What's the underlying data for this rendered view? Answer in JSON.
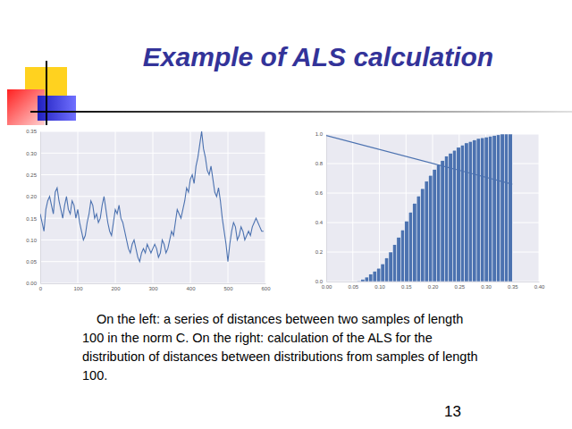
{
  "title": "Example of ALS calculation",
  "caption": [
    "On the left: a series of distances between two samples of length",
    "100 in the norm C. On the right: calculation of the ALS for the",
    "distribution of distances between distributions from samples of length",
    "100."
  ],
  "page": 13,
  "chart_data": [
    {
      "type": "line",
      "color": "#4c72b0",
      "grid": true,
      "xlim": [
        0,
        600
      ],
      "xticks": [
        0,
        100,
        200,
        300,
        400,
        500,
        600
      ],
      "ylim": [
        0,
        0.35
      ],
      "yticks": [
        {
          "value": 0,
          "label": "0.00"
        },
        {
          "value": 0.05,
          "label": "0.05"
        },
        {
          "value": 0.1,
          "label": "0.10"
        },
        {
          "value": 0.15,
          "label": "0.15"
        },
        {
          "value": 0.2,
          "label": "0.20"
        },
        {
          "value": 0.25,
          "label": "0.25"
        },
        {
          "value": 0.3,
          "label": "0.30"
        },
        {
          "value": 0.35,
          "label": "0.35"
        }
      ],
      "x": [
        0,
        5,
        10,
        15,
        20,
        25,
        30,
        35,
        40,
        45,
        50,
        55,
        60,
        65,
        70,
        75,
        80,
        85,
        90,
        95,
        100,
        105,
        110,
        115,
        120,
        125,
        130,
        135,
        140,
        145,
        150,
        155,
        160,
        165,
        170,
        175,
        180,
        185,
        190,
        195,
        200,
        205,
        210,
        215,
        220,
        225,
        230,
        235,
        240,
        245,
        250,
        255,
        260,
        265,
        270,
        275,
        280,
        285,
        290,
        295,
        300,
        305,
        310,
        315,
        320,
        325,
        330,
        335,
        340,
        345,
        350,
        355,
        360,
        365,
        370,
        375,
        380,
        385,
        390,
        395,
        400,
        405,
        410,
        415,
        420,
        425,
        430,
        435,
        440,
        445,
        450,
        455,
        460,
        465,
        470,
        475,
        480,
        485,
        490,
        495,
        500,
        505,
        510,
        515,
        520,
        525,
        530,
        535,
        540,
        545,
        550,
        555,
        560,
        565,
        570,
        575,
        580,
        585,
        590,
        595
      ],
      "values": [
        0.16,
        0.14,
        0.12,
        0.17,
        0.19,
        0.2,
        0.18,
        0.16,
        0.21,
        0.22,
        0.19,
        0.17,
        0.15,
        0.18,
        0.2,
        0.17,
        0.16,
        0.19,
        0.18,
        0.15,
        0.17,
        0.14,
        0.12,
        0.1,
        0.11,
        0.14,
        0.16,
        0.19,
        0.18,
        0.15,
        0.16,
        0.14,
        0.15,
        0.18,
        0.2,
        0.17,
        0.14,
        0.12,
        0.11,
        0.14,
        0.17,
        0.16,
        0.18,
        0.15,
        0.14,
        0.12,
        0.1,
        0.08,
        0.07,
        0.09,
        0.1,
        0.08,
        0.06,
        0.05,
        0.07,
        0.08,
        0.07,
        0.09,
        0.08,
        0.07,
        0.08,
        0.09,
        0.08,
        0.06,
        0.07,
        0.1,
        0.09,
        0.07,
        0.08,
        0.1,
        0.12,
        0.11,
        0.14,
        0.17,
        0.16,
        0.15,
        0.17,
        0.19,
        0.22,
        0.21,
        0.24,
        0.25,
        0.23,
        0.27,
        0.29,
        0.32,
        0.35,
        0.31,
        0.29,
        0.26,
        0.25,
        0.27,
        0.24,
        0.21,
        0.2,
        0.22,
        0.19,
        0.15,
        0.12,
        0.09,
        0.05,
        0.09,
        0.12,
        0.14,
        0.13,
        0.1,
        0.11,
        0.13,
        0.12,
        0.1,
        0.11,
        0.12,
        0.11,
        0.13,
        0.14,
        0.15,
        0.14,
        0.13,
        0.12,
        0.12
      ]
    },
    {
      "type": "histogram",
      "grid": true,
      "xlim": [
        0,
        0.4
      ],
      "xticks": [
        {
          "value": 0,
          "label": "0.00"
        },
        {
          "value": 0.05,
          "label": "0.05"
        },
        {
          "value": 0.1,
          "label": "0.10"
        },
        {
          "value": 0.15,
          "label": "0.15"
        },
        {
          "value": 0.2,
          "label": "0.20"
        },
        {
          "value": 0.25,
          "label": "0.25"
        },
        {
          "value": 0.3,
          "label": "0.30"
        },
        {
          "value": 0.35,
          "label": "0.35"
        },
        {
          "value": 0.4,
          "label": "0.40"
        }
      ],
      "ylim": [
        0,
        1
      ],
      "yticks": [
        {
          "value": 0,
          "label": "0.0"
        },
        {
          "value": 0.2,
          "label": "0.2"
        },
        {
          "value": 0.4,
          "label": "0.4"
        },
        {
          "value": 0.6,
          "label": "0.6"
        },
        {
          "value": 0.8,
          "label": "0.8"
        },
        {
          "value": 1,
          "label": "1.0"
        }
      ],
      "series": [
        {
          "type": "histogram",
          "color": "#4c72b0",
          "bins": [
            0.05,
            0.0575,
            0.065,
            0.0725,
            0.08,
            0.0875,
            0.095,
            0.1025,
            0.11,
            0.1175,
            0.125,
            0.1325,
            0.14,
            0.1475,
            0.155,
            0.1625,
            0.17,
            0.1775,
            0.185,
            0.1925,
            0.2,
            0.2075,
            0.215,
            0.2225,
            0.23,
            0.2375,
            0.245,
            0.2525,
            0.26,
            0.2675,
            0.275,
            0.2825,
            0.29,
            0.2975,
            0.305,
            0.3125,
            0.32,
            0.3275,
            0.335,
            0.3425,
            0.35
          ],
          "values": [
            0.0,
            0.005,
            0.015,
            0.03,
            0.05,
            0.07,
            0.09,
            0.12,
            0.16,
            0.2,
            0.25,
            0.3,
            0.35,
            0.41,
            0.47,
            0.53,
            0.58,
            0.63,
            0.68,
            0.72,
            0.76,
            0.79,
            0.82,
            0.85,
            0.87,
            0.89,
            0.91,
            0.925,
            0.94,
            0.95,
            0.96,
            0.97,
            0.975,
            0.98,
            0.985,
            0.99,
            0.995,
            1.0,
            1.0,
            1.0
          ]
        },
        {
          "type": "line",
          "color": "#4c72b0",
          "x": [
            0,
            0.35
          ],
          "values": [
            0.99,
            0.66
          ]
        }
      ]
    }
  ]
}
